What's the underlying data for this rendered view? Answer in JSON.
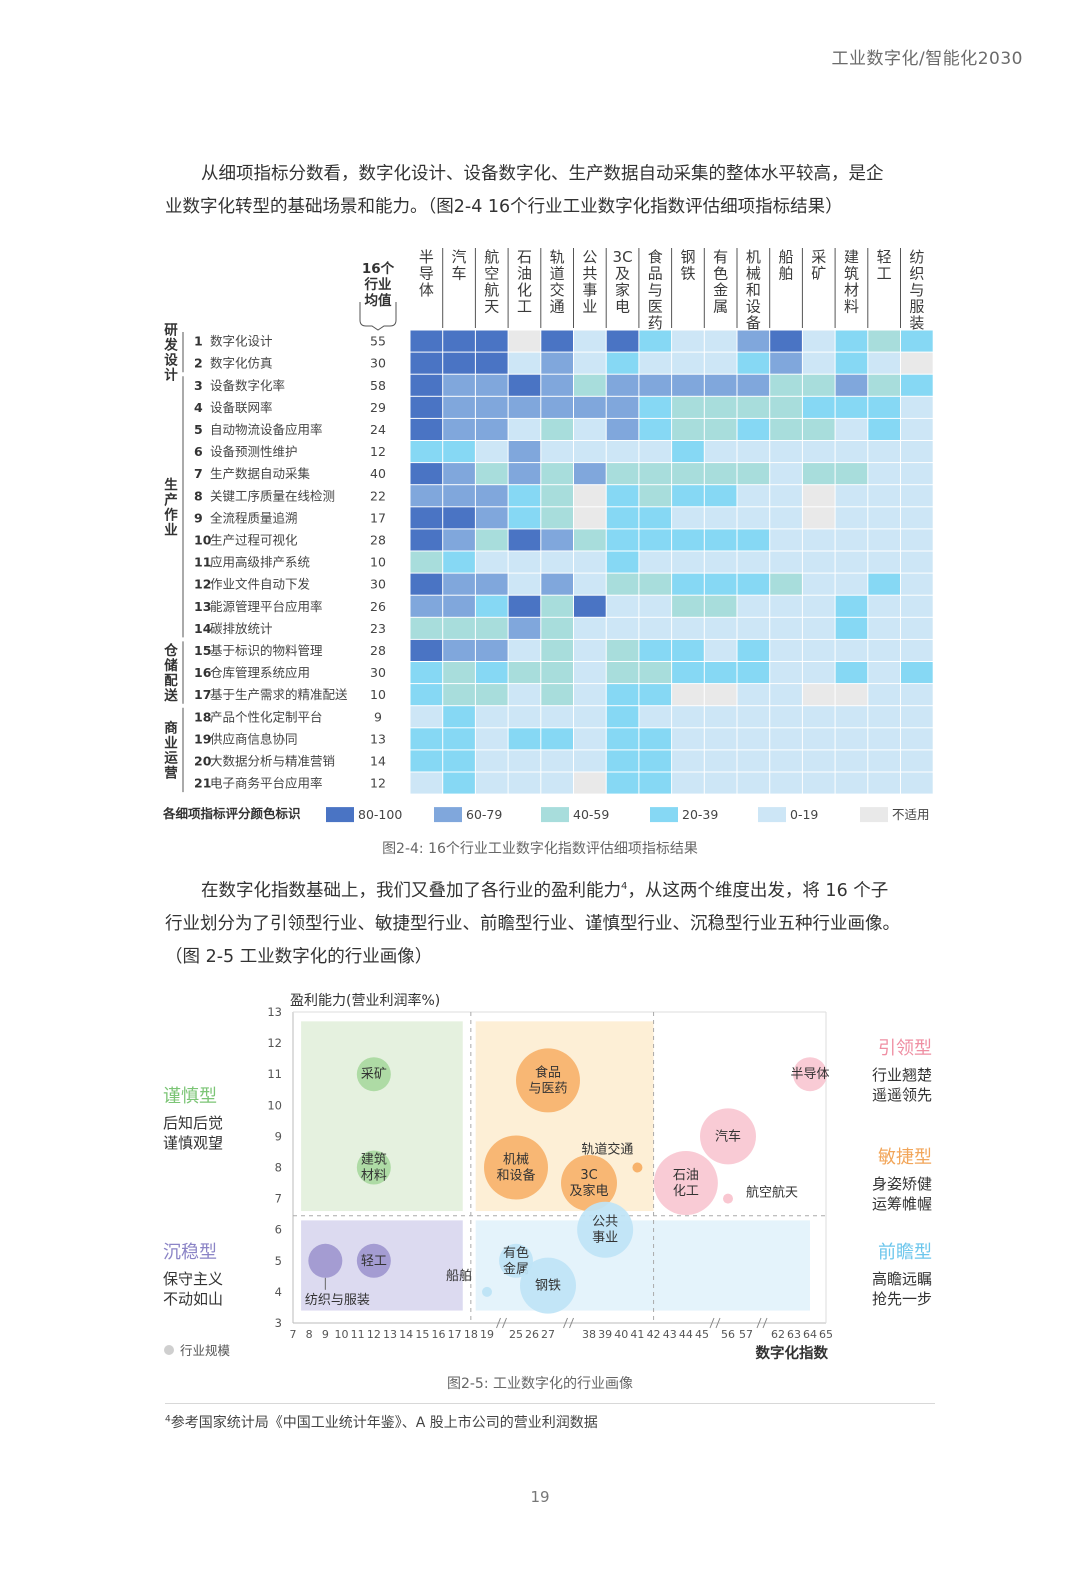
{
  "header": {
    "title": "工业数字化/智能化2030"
  },
  "intro": {
    "line1": "从细项指标分数看，数字化设计、设备数字化、生产数据自动采集的整体水平较高，是企",
    "line2": "业数字化转型的基础场景和能力。（图2-4 16个行业工业数字化指数评估细项指标结果）"
  },
  "heatmap": {
    "avg_header": [
      "16个",
      "行业",
      "均值"
    ],
    "industries": [
      "半导体",
      "汽车",
      "航空航天",
      "石油化工",
      "轨道交通",
      "公共事业",
      "3C及家电",
      "食品与医药",
      "钢铁",
      "有色金属",
      "机械和设备",
      "船舶",
      "采矿",
      "建筑材料",
      "轻工",
      "纺织与服装"
    ],
    "groups": [
      {
        "label": "研发设计",
        "rows": [
          1,
          2
        ]
      },
      {
        "label": "生产作业",
        "rows": [
          3,
          14
        ]
      },
      {
        "label": "仓储配送",
        "rows": [
          15,
          17
        ]
      },
      {
        "label": "商业运营",
        "rows": [
          18,
          21
        ]
      }
    ],
    "rows": [
      {
        "no": "1",
        "name": "数字化设计",
        "avg": "55"
      },
      {
        "no": "2",
        "name": "数字化仿真",
        "avg": "30"
      },
      {
        "no": "3",
        "name": "设备数字化率",
        "avg": "58"
      },
      {
        "no": "4",
        "name": "设备联网率",
        "avg": "29"
      },
      {
        "no": "5",
        "name": "自动物流设备应用率",
        "avg": "24"
      },
      {
        "no": "6",
        "name": "设备预测性维护",
        "avg": "12"
      },
      {
        "no": "7",
        "name": "生产数据自动采集",
        "avg": "40"
      },
      {
        "no": "8",
        "name": "关键工序质量在线检测",
        "avg": "22"
      },
      {
        "no": "9",
        "name": "全流程质量追溯",
        "avg": "17"
      },
      {
        "no": "10",
        "name": "生产过程可视化",
        "avg": "28"
      },
      {
        "no": "11",
        "name": "应用高级排产系统",
        "avg": "10"
      },
      {
        "no": "12",
        "name": "作业文件自动下发",
        "avg": "30"
      },
      {
        "no": "13",
        "name": "能源管理平台应用率",
        "avg": "26"
      },
      {
        "no": "14",
        "name": "碳排放统计",
        "avg": "23"
      },
      {
        "no": "15",
        "name": "基于标识的物料管理",
        "avg": "28"
      },
      {
        "no": "16",
        "name": "仓库管理系统应用",
        "avg": "30"
      },
      {
        "no": "17",
        "name": "基于生产需求的精准配送",
        "avg": "10"
      },
      {
        "no": "18",
        "name": "产品个性化定制平台",
        "avg": "9"
      },
      {
        "no": "19",
        "name": "供应商信息协同",
        "avg": "13"
      },
      {
        "no": "20",
        "name": "大数据分析与精准营销",
        "avg": "14"
      },
      {
        "no": "21",
        "name": "电子商务平台应用率",
        "avg": "12"
      }
    ],
    "levels": [
      [
        0,
        0,
        0,
        5,
        0,
        4,
        0,
        3,
        4,
        4,
        1,
        0,
        4,
        3,
        2,
        3
      ],
      [
        0,
        0,
        0,
        4,
        1,
        4,
        3,
        4,
        4,
        4,
        3,
        1,
        4,
        3,
        4,
        5
      ],
      [
        0,
        1,
        1,
        0,
        1,
        2,
        1,
        1,
        1,
        1,
        1,
        2,
        2,
        1,
        2,
        3
      ],
      [
        0,
        1,
        1,
        1,
        1,
        1,
        1,
        3,
        2,
        2,
        2,
        2,
        3,
        3,
        3,
        4
      ],
      [
        0,
        1,
        1,
        4,
        2,
        4,
        1,
        3,
        2,
        2,
        3,
        2,
        2,
        4,
        3,
        4
      ],
      [
        3,
        3,
        4,
        1,
        4,
        4,
        4,
        4,
        3,
        4,
        4,
        4,
        4,
        4,
        4,
        4
      ],
      [
        0,
        1,
        2,
        1,
        2,
        1,
        2,
        2,
        2,
        2,
        2,
        4,
        2,
        2,
        4,
        4
      ],
      [
        1,
        1,
        1,
        3,
        2,
        5,
        3,
        2,
        3,
        3,
        4,
        4,
        5,
        4,
        4,
        4
      ],
      [
        0,
        0,
        1,
        3,
        2,
        5,
        3,
        3,
        4,
        4,
        4,
        4,
        5,
        4,
        4,
        4
      ],
      [
        0,
        1,
        2,
        0,
        1,
        2,
        3,
        3,
        3,
        3,
        3,
        4,
        4,
        4,
        4,
        4
      ],
      [
        2,
        3,
        4,
        4,
        4,
        4,
        3,
        4,
        4,
        4,
        4,
        4,
        4,
        4,
        4,
        4
      ],
      [
        0,
        1,
        1,
        4,
        1,
        4,
        2,
        2,
        3,
        3,
        3,
        2,
        4,
        4,
        3,
        4
      ],
      [
        1,
        1,
        3,
        0,
        2,
        0,
        4,
        4,
        2,
        2,
        4,
        4,
        4,
        3,
        4,
        4
      ],
      [
        2,
        2,
        2,
        1,
        2,
        4,
        4,
        4,
        4,
        4,
        4,
        4,
        4,
        3,
        4,
        4
      ],
      [
        0,
        1,
        1,
        4,
        2,
        4,
        2,
        3,
        3,
        4,
        3,
        4,
        4,
        4,
        4,
        4
      ],
      [
        3,
        2,
        3,
        2,
        2,
        4,
        2,
        2,
        3,
        3,
        3,
        4,
        4,
        3,
        4,
        3
      ],
      [
        3,
        2,
        2,
        4,
        2,
        4,
        3,
        3,
        5,
        5,
        4,
        4,
        5,
        5,
        4,
        4
      ],
      [
        4,
        3,
        4,
        4,
        4,
        4,
        3,
        4,
        4,
        4,
        4,
        4,
        4,
        4,
        4,
        4
      ],
      [
        3,
        3,
        4,
        3,
        3,
        4,
        3,
        3,
        4,
        4,
        4,
        4,
        4,
        4,
        4,
        4
      ],
      [
        3,
        3,
        4,
        4,
        4,
        4,
        3,
        3,
        4,
        4,
        4,
        4,
        4,
        4,
        4,
        4
      ],
      [
        4,
        3,
        4,
        4,
        4,
        5,
        3,
        3,
        4,
        4,
        4,
        4,
        4,
        4,
        4,
        4
      ]
    ],
    "legend_title": "各细项指标评分颜色标识",
    "legend": [
      {
        "label": "80-100",
        "color": "#4a74c4"
      },
      {
        "label": "60-79",
        "color": "#80a7dc"
      },
      {
        "label": "40-59",
        "color": "#a8dddc"
      },
      {
        "label": "20-39",
        "color": "#86d8f4"
      },
      {
        "label": "0-19",
        "color": "#cde6f6"
      },
      {
        "label": "不适用",
        "color": "#e9e9e9"
      }
    ],
    "caption": "图2-4: 16个行业工业数字化指数评估细项指标结果"
  },
  "mid": {
    "line1": "在数字化指数基础上，我们又叠加了各行业的盈利能力",
    "sup": "4",
    "line1b": "，从这两个维度出发，将 16 个子",
    "line2": "行业划分为了引领型行业、敏捷型行业、前瞻型行业、谨慎型行业、沉稳型行业五种行业画像。",
    "line3": "（图 2-5 工业数字化的行业画像）"
  },
  "chart_data": {
    "type": "scatter",
    "title": "",
    "ylabel": "盈利能力(营业利润率%)",
    "xlabel": "数字化指数",
    "ylim": [
      3,
      13
    ],
    "yticks": [
      "3",
      "4",
      "5",
      "6",
      "7",
      "8",
      "9",
      "10",
      "11",
      "12",
      "13"
    ],
    "xticks": [
      "7",
      "8",
      "9",
      "10",
      "11",
      "12",
      "13",
      "14",
      "15",
      "16",
      "17",
      "18",
      "19",
      "25",
      "26",
      "27",
      "38",
      "39",
      "40",
      "41",
      "42",
      "43",
      "44",
      "45",
      "56",
      "57",
      "62",
      "63",
      "64",
      "65"
    ],
    "size_legend": "行业规模",
    "points": [
      {
        "name": "半导体",
        "x": 64,
        "y": 11,
        "size": "small",
        "group": "引领型"
      },
      {
        "name": "汽车",
        "x": 56,
        "y": 9,
        "size": "medium",
        "group": "引领型"
      },
      {
        "name": "石油化工",
        "x": 44,
        "y": 7.5,
        "size": "large",
        "group": "引领型"
      },
      {
        "name": "航空航天",
        "x": 56,
        "y": 7,
        "size": "tiny",
        "group": "引领型"
      },
      {
        "name": "食品与医药",
        "x": 27,
        "y": 10.8,
        "size": "large",
        "group": "敏捷型"
      },
      {
        "name": "机械和设备",
        "x": 25,
        "y": 8,
        "size": "large",
        "group": "敏捷型"
      },
      {
        "name": "3C及家电",
        "x": 38,
        "y": 7.5,
        "size": "medium",
        "group": "敏捷型"
      },
      {
        "name": "轨道交通",
        "x": 41,
        "y": 8,
        "size": "tiny",
        "group": "敏捷型"
      },
      {
        "name": "公共事业",
        "x": 39,
        "y": 6,
        "size": "medium",
        "group": "前瞻型"
      },
      {
        "name": "有色金属",
        "x": 25,
        "y": 5,
        "size": "small",
        "group": "前瞻型"
      },
      {
        "name": "钢铁",
        "x": 27,
        "y": 4.2,
        "size": "medium",
        "group": "前瞻型"
      },
      {
        "name": "船舶",
        "x": 19,
        "y": 4,
        "size": "tiny",
        "group": "前瞻型"
      },
      {
        "name": "采矿",
        "x": 12,
        "y": 11,
        "size": "small",
        "group": "谨慎型"
      },
      {
        "name": "建筑材料",
        "x": 12,
        "y": 8,
        "size": "small",
        "group": "谨慎型"
      },
      {
        "name": "轻工",
        "x": 12,
        "y": 5,
        "size": "small",
        "group": "沉稳型"
      },
      {
        "name": "纺织与服装",
        "x": 9,
        "y": 5,
        "size": "small",
        "group": "沉稳型"
      }
    ],
    "types": [
      {
        "name": "引领型",
        "desc": [
          "行业翘楚",
          "遥遥领先"
        ],
        "color": "#ef8fa3"
      },
      {
        "name": "敏捷型",
        "desc": [
          "身姿矫健",
          "运筹帷幄"
        ],
        "color": "#f2a65a"
      },
      {
        "name": "前瞻型",
        "desc": [
          "高瞻远瞩",
          "抢先一步"
        ],
        "color": "#6cc6ec"
      },
      {
        "name": "谨慎型",
        "desc": [
          "后知后觉",
          "谨慎观望"
        ],
        "color": "#7cc576"
      },
      {
        "name": "沉稳型",
        "desc": [
          "保守主义",
          "不动如山"
        ],
        "color": "#8b84c6"
      }
    ],
    "caption": "图2-5: 工业数字化的行业画像"
  },
  "footnote": {
    "sup": "4",
    "text": "参考国家统计局《中国工业统计年鉴》、A 股上市公司的营业利润数据"
  },
  "page_number": "19"
}
